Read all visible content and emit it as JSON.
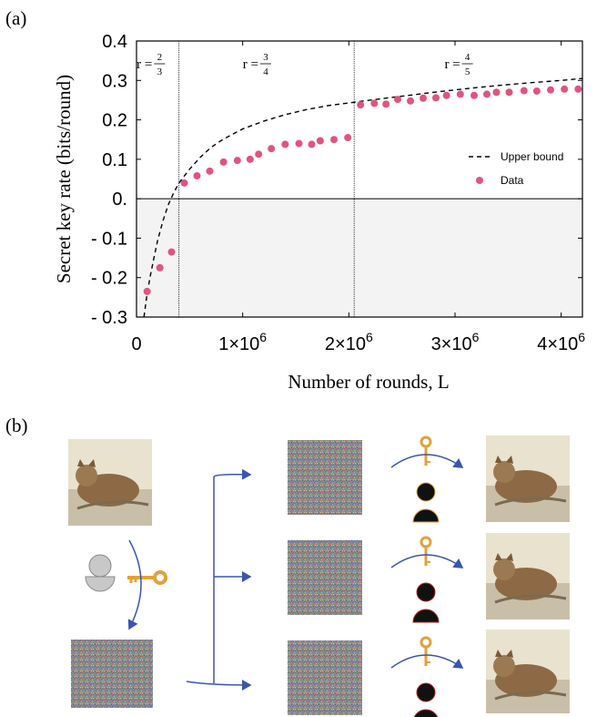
{
  "panels": {
    "a": "(a)",
    "b": "(b)"
  },
  "chart_data": {
    "type": "scatter",
    "xlabel": "Number of rounds, L",
    "ylabel": "Secret key rate (bits/round)",
    "xlim": [
      0,
      4200000
    ],
    "ylim": [
      -0.3,
      0.4
    ],
    "yticks": [
      {
        "value": 0.4,
        "label": "0.4"
      },
      {
        "value": 0.3,
        "label": "0.3"
      },
      {
        "value": 0.2,
        "label": "0.2"
      },
      {
        "value": 0.1,
        "label": "0.1"
      },
      {
        "value": 0.0,
        "label": "0."
      },
      {
        "value": -0.1,
        "label": "- 0.1"
      },
      {
        "value": -0.2,
        "label": "- 0.2"
      },
      {
        "value": -0.3,
        "label": "- 0.3"
      }
    ],
    "xticks": [
      {
        "value": 0,
        "label": "0",
        "exp": ""
      },
      {
        "value": 1000000,
        "label": "1×10",
        "exp": "6"
      },
      {
        "value": 2000000,
        "label": "2×10",
        "exp": "6"
      },
      {
        "value": 3000000,
        "label": "3×10",
        "exp": "6"
      },
      {
        "value": 4000000,
        "label": "4×10",
        "exp": "6"
      }
    ],
    "grid": false,
    "negative_region_shaded": true,
    "region_boundaries": [
      400000,
      2050000
    ],
    "regions": [
      {
        "r_label": "r =",
        "num": "2",
        "den": "3",
        "x_center": 200000
      },
      {
        "r_label": "r =",
        "num": "3",
        "den": "4",
        "x_center": 1200000
      },
      {
        "r_label": "r =",
        "num": "4",
        "den": "5",
        "x_center": 3100000
      }
    ],
    "legend": {
      "placement": "right, above zero line",
      "entries": [
        "Upper bound",
        "Data"
      ]
    },
    "series": [
      {
        "name": "Upper bound",
        "style": "dashed line",
        "color": "#000000",
        "x": [
          70000,
          100000,
          130000,
          160000,
          200000,
          250000,
          300000,
          350000,
          400000,
          500000,
          600000,
          700000,
          800000,
          900000,
          1000000,
          1200000,
          1400000,
          1600000,
          1800000,
          2000000,
          2200000,
          2500000,
          2800000,
          3100000,
          3400000,
          3700000,
          4000000,
          4200000
        ],
        "y": [
          -0.3,
          -0.24,
          -0.195,
          -0.155,
          -0.105,
          -0.055,
          -0.015,
          0.015,
          0.04,
          0.075,
          0.105,
          0.13,
          0.148,
          0.163,
          0.177,
          0.197,
          0.213,
          0.226,
          0.236,
          0.243,
          0.25,
          0.26,
          0.27,
          0.279,
          0.287,
          0.294,
          0.3,
          0.305
        ]
      },
      {
        "name": "Data",
        "style": "markers",
        "color": "#e0547e",
        "x": [
          100000,
          220000,
          330000,
          450000,
          570000,
          690000,
          820000,
          950000,
          1070000,
          1150000,
          1270000,
          1400000,
          1530000,
          1650000,
          1730000,
          1860000,
          1990000,
          2110000,
          2240000,
          2350000,
          2460000,
          2580000,
          2700000,
          2820000,
          2920000,
          3050000,
          3180000,
          3300000,
          3390000,
          3510000,
          3650000,
          3770000,
          3900000,
          4030000,
          4160000
        ],
        "y": [
          -0.235,
          -0.175,
          -0.135,
          0.04,
          0.058,
          0.07,
          0.093,
          0.097,
          0.1,
          0.113,
          0.127,
          0.138,
          0.14,
          0.138,
          0.147,
          0.15,
          0.155,
          0.238,
          0.242,
          0.24,
          0.252,
          0.248,
          0.255,
          0.256,
          0.262,
          0.265,
          0.262,
          0.265,
          0.27,
          0.27,
          0.274,
          0.273,
          0.276,
          0.278,
          0.278
        ]
      }
    ]
  },
  "illustration": {
    "colors": {
      "arrow": "#3a55b0",
      "key": "#e0a23a",
      "noise": "#8a8a8a"
    },
    "icons": [
      "cat-image",
      "person-icon",
      "key-icon",
      "noise-image"
    ]
  }
}
